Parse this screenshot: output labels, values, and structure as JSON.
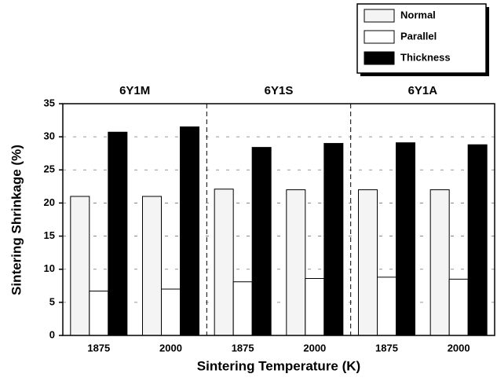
{
  "chart_data": {
    "type": "bar",
    "xlabel": "Sintering Temperature (K)",
    "ylabel": "Sintering Shrinkage (%)",
    "groups": [
      "6Y1M",
      "6Y1S",
      "6Y1A"
    ],
    "categories": [
      "1875",
      "2000",
      "1875",
      "2000",
      "1875",
      "2000"
    ],
    "series": [
      {
        "name": "Normal",
        "color": "#f4f4f4",
        "values": [
          21,
          21,
          22.1,
          22,
          22,
          22
        ]
      },
      {
        "name": "Parallel",
        "color": "#ffffff",
        "values": [
          6.7,
          7,
          8.1,
          8.6,
          8.8,
          8.5
        ]
      },
      {
        "name": "Thickness",
        "color": "#000000",
        "values": [
          30.7,
          31.5,
          28.4,
          29,
          29.1,
          28.8
        ]
      }
    ],
    "ylim": [
      0,
      35
    ],
    "yticks": [
      0,
      5,
      10,
      15,
      20,
      25,
      30,
      35
    ],
    "grid": true
  }
}
